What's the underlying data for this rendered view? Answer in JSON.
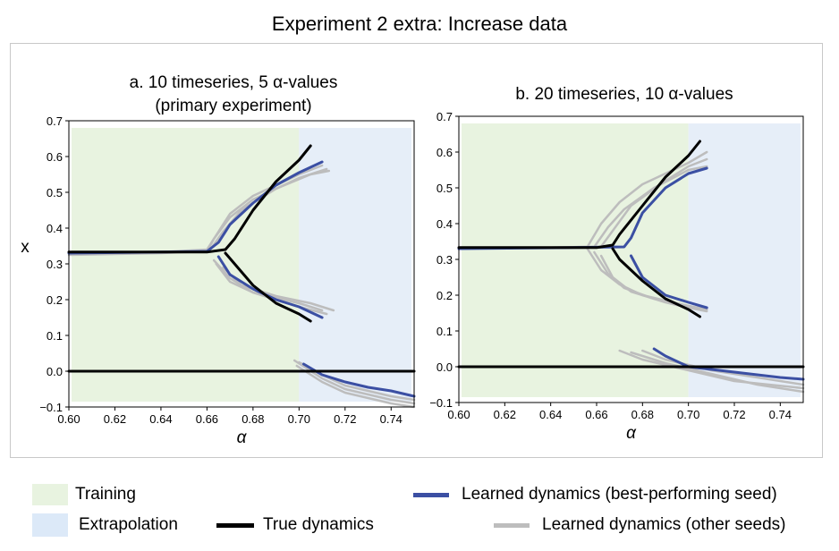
{
  "figure": {
    "title": "Experiment 2 extra: Increase data"
  },
  "colors": {
    "true": "#000000",
    "best": "#3b4fa3",
    "other": "#bdbdbd",
    "training": "#e8f3e0",
    "extrapolation": "#e6eef8"
  },
  "legend": {
    "training": "Training",
    "extrapolation": "Extrapolation",
    "true_dynamics": "True dynamics",
    "best": "Learned dynamics (best-performing seed)",
    "other": "Learned dynamics (other seeds)"
  },
  "chart_data": [
    {
      "type": "line",
      "title_line1": "a. 10 timeseries, 5 α-values",
      "title_line2": "(primary experiment)",
      "xlabel": "α",
      "ylabel": "x",
      "xlim": [
        0.6,
        0.75
      ],
      "ylim": [
        -0.1,
        0.7
      ],
      "xticks": [
        "0.60",
        "0.62",
        "0.64",
        "0.66",
        "0.68",
        "0.70",
        "0.72",
        "0.74"
      ],
      "yticks": [
        "−0.1",
        "0.0",
        "0.1",
        "0.2",
        "0.3",
        "0.4",
        "0.5",
        "0.6",
        "0.7"
      ],
      "training_range": [
        0.6,
        0.7
      ],
      "extrapolation_range": [
        0.7,
        0.75
      ],
      "series": [
        {
          "name": "true-upper",
          "kind": "true",
          "x": [
            0.6,
            0.64,
            0.66,
            0.668,
            0.672,
            0.68,
            0.69,
            0.7,
            0.705
          ],
          "y": [
            0.333,
            0.333,
            0.333,
            0.34,
            0.37,
            0.45,
            0.53,
            0.59,
            0.63
          ]
        },
        {
          "name": "true-lower",
          "kind": "true",
          "x": [
            0.668,
            0.672,
            0.68,
            0.69,
            0.7,
            0.705
          ],
          "y": [
            0.33,
            0.3,
            0.24,
            0.19,
            0.16,
            0.14
          ]
        },
        {
          "name": "true-zero",
          "kind": "true",
          "x": [
            0.6,
            0.75
          ],
          "y": [
            0.0,
            0.0
          ]
        },
        {
          "name": "best-upper",
          "kind": "best",
          "x": [
            0.6,
            0.64,
            0.66,
            0.665,
            0.67,
            0.68,
            0.69,
            0.7,
            0.71
          ],
          "y": [
            0.33,
            0.333,
            0.335,
            0.36,
            0.41,
            0.47,
            0.52,
            0.555,
            0.585
          ]
        },
        {
          "name": "best-lower",
          "kind": "best",
          "x": [
            0.665,
            0.67,
            0.68,
            0.69,
            0.7,
            0.71
          ],
          "y": [
            0.32,
            0.27,
            0.23,
            0.2,
            0.18,
            0.15
          ]
        },
        {
          "name": "best-low",
          "kind": "best",
          "x": [
            0.702,
            0.71,
            0.72,
            0.73,
            0.74,
            0.75
          ],
          "y": [
            0.02,
            -0.01,
            -0.03,
            -0.045,
            -0.055,
            -0.07
          ]
        },
        {
          "name": "other-1-upper",
          "kind": "other",
          "x": [
            0.6,
            0.64,
            0.66,
            0.663,
            0.67,
            0.68,
            0.7,
            0.712
          ],
          "y": [
            0.325,
            0.33,
            0.335,
            0.37,
            0.43,
            0.48,
            0.54,
            0.565
          ]
        },
        {
          "name": "other-1-lower",
          "kind": "other",
          "x": [
            0.663,
            0.67,
            0.68,
            0.7,
            0.712
          ],
          "y": [
            0.31,
            0.26,
            0.22,
            0.18,
            0.16
          ]
        },
        {
          "name": "other-1-low",
          "kind": "other",
          "x": [
            0.698,
            0.71,
            0.72,
            0.74,
            0.75
          ],
          "y": [
            0.03,
            -0.02,
            -0.05,
            -0.08,
            -0.09
          ]
        },
        {
          "name": "other-2-upper",
          "kind": "other",
          "x": [
            0.6,
            0.64,
            0.66,
            0.664,
            0.67,
            0.68,
            0.7,
            0.71
          ],
          "y": [
            0.33,
            0.333,
            0.34,
            0.38,
            0.44,
            0.49,
            0.55,
            0.575
          ]
        },
        {
          "name": "other-2-lower",
          "kind": "other",
          "x": [
            0.664,
            0.67,
            0.68,
            0.7,
            0.71
          ],
          "y": [
            0.3,
            0.25,
            0.22,
            0.19,
            0.17
          ]
        },
        {
          "name": "other-2-low",
          "kind": "other",
          "x": [
            0.7,
            0.71,
            0.72,
            0.74,
            0.75
          ],
          "y": [
            0.025,
            -0.01,
            -0.04,
            -0.07,
            -0.08
          ]
        },
        {
          "name": "other-3-upper",
          "kind": "other",
          "x": [
            0.6,
            0.64,
            0.661,
            0.667,
            0.675,
            0.69,
            0.705,
            0.713
          ],
          "y": [
            0.33,
            0.332,
            0.336,
            0.39,
            0.45,
            0.51,
            0.55,
            0.56
          ]
        },
        {
          "name": "other-3-lower",
          "kind": "other",
          "x": [
            0.667,
            0.675,
            0.69,
            0.705,
            0.715
          ],
          "y": [
            0.29,
            0.24,
            0.21,
            0.19,
            0.17
          ]
        },
        {
          "name": "other-3-low",
          "kind": "other",
          "x": [
            0.699,
            0.71,
            0.72,
            0.74,
            0.75
          ],
          "y": [
            0.015,
            -0.03,
            -0.06,
            -0.09,
            -0.1
          ]
        }
      ]
    },
    {
      "type": "line",
      "title_line1": "b. 20 timeseries, 10 α-values",
      "title_line2": "",
      "xlabel": "α",
      "ylabel": "",
      "xlim": [
        0.6,
        0.75
      ],
      "ylim": [
        -0.1,
        0.7
      ],
      "xticks": [
        "0.60",
        "0.62",
        "0.64",
        "0.66",
        "0.68",
        "0.70",
        "0.72",
        "0.74"
      ],
      "yticks": [
        "−0.1",
        "0.0",
        "0.1",
        "0.2",
        "0.3",
        "0.4",
        "0.5",
        "0.6",
        "0.7"
      ],
      "training_range": [
        0.6,
        0.7
      ],
      "extrapolation_range": [
        0.7,
        0.75
      ],
      "series": [
        {
          "name": "true-upper",
          "kind": "true",
          "x": [
            0.6,
            0.64,
            0.66,
            0.667,
            0.67,
            0.68,
            0.69,
            0.7,
            0.705
          ],
          "y": [
            0.333,
            0.333,
            0.333,
            0.34,
            0.37,
            0.45,
            0.53,
            0.59,
            0.63
          ]
        },
        {
          "name": "true-lower",
          "kind": "true",
          "x": [
            0.667,
            0.67,
            0.68,
            0.69,
            0.7,
            0.705
          ],
          "y": [
            0.33,
            0.3,
            0.24,
            0.19,
            0.16,
            0.14
          ]
        },
        {
          "name": "true-zero",
          "kind": "true",
          "x": [
            0.6,
            0.75
          ],
          "y": [
            0.0,
            0.0
          ]
        },
        {
          "name": "best-upper",
          "kind": "best",
          "x": [
            0.6,
            0.65,
            0.672,
            0.675,
            0.68,
            0.69,
            0.7,
            0.708
          ],
          "y": [
            0.33,
            0.333,
            0.335,
            0.36,
            0.43,
            0.5,
            0.54,
            0.555
          ]
        },
        {
          "name": "best-lower",
          "kind": "best",
          "x": [
            0.675,
            0.68,
            0.69,
            0.7,
            0.708
          ],
          "y": [
            0.31,
            0.25,
            0.2,
            0.18,
            0.165
          ]
        },
        {
          "name": "best-low",
          "kind": "best",
          "x": [
            0.685,
            0.69,
            0.7,
            0.72,
            0.74,
            0.75
          ],
          "y": [
            0.05,
            0.03,
            0.0,
            -0.015,
            -0.03,
            -0.035
          ]
        },
        {
          "name": "other-1-upper",
          "kind": "other",
          "x": [
            0.6,
            0.64,
            0.656,
            0.662,
            0.67,
            0.68,
            0.7,
            0.708
          ],
          "y": [
            0.33,
            0.333,
            0.335,
            0.4,
            0.46,
            0.51,
            0.57,
            0.6
          ]
        },
        {
          "name": "other-1-lower",
          "kind": "other",
          "x": [
            0.656,
            0.662,
            0.67,
            0.68,
            0.7,
            0.708
          ],
          "y": [
            0.33,
            0.27,
            0.23,
            0.2,
            0.17,
            0.16
          ]
        },
        {
          "name": "other-1-low",
          "kind": "other",
          "x": [
            0.67,
            0.68,
            0.7,
            0.72,
            0.75
          ],
          "y": [
            0.045,
            0.02,
            -0.01,
            -0.04,
            -0.06
          ]
        },
        {
          "name": "other-2-upper",
          "kind": "other",
          "x": [
            0.6,
            0.64,
            0.659,
            0.665,
            0.672,
            0.685,
            0.7,
            0.708
          ],
          "y": [
            0.33,
            0.333,
            0.335,
            0.39,
            0.44,
            0.5,
            0.55,
            0.56
          ]
        },
        {
          "name": "other-2-lower",
          "kind": "other",
          "x": [
            0.659,
            0.665,
            0.672,
            0.685,
            0.7,
            0.708
          ],
          "y": [
            0.32,
            0.26,
            0.22,
            0.19,
            0.17,
            0.16
          ]
        },
        {
          "name": "other-2-low",
          "kind": "other",
          "x": [
            0.675,
            0.69,
            0.71,
            0.73,
            0.75
          ],
          "y": [
            0.04,
            0.01,
            -0.02,
            -0.05,
            -0.07
          ]
        },
        {
          "name": "other-3-upper",
          "kind": "other",
          "x": [
            0.6,
            0.64,
            0.662,
            0.667,
            0.675,
            0.69,
            0.7,
            0.708
          ],
          "y": [
            0.33,
            0.333,
            0.336,
            0.38,
            0.45,
            0.52,
            0.56,
            0.58
          ]
        },
        {
          "name": "other-3-lower",
          "kind": "other",
          "x": [
            0.662,
            0.667,
            0.675,
            0.69,
            0.7,
            0.708
          ],
          "y": [
            0.31,
            0.25,
            0.21,
            0.18,
            0.165,
            0.155
          ]
        },
        {
          "name": "other-3-low",
          "kind": "other",
          "x": [
            0.68,
            0.69,
            0.71,
            0.73,
            0.75
          ],
          "y": [
            0.045,
            0.02,
            -0.01,
            -0.03,
            -0.05
          ]
        }
      ]
    }
  ]
}
